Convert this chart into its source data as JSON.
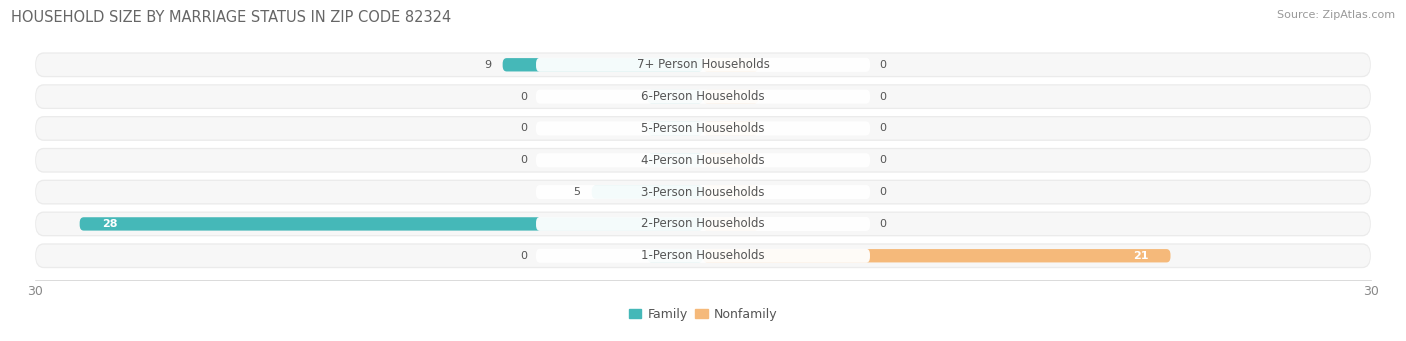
{
  "title": "HOUSEHOLD SIZE BY MARRIAGE STATUS IN ZIP CODE 82324",
  "source": "Source: ZipAtlas.com",
  "categories": [
    "7+ Person Households",
    "6-Person Households",
    "5-Person Households",
    "4-Person Households",
    "3-Person Households",
    "2-Person Households",
    "1-Person Households"
  ],
  "family_values": [
    9,
    0,
    0,
    0,
    5,
    28,
    0
  ],
  "nonfamily_values": [
    0,
    0,
    0,
    0,
    0,
    0,
    21
  ],
  "family_color": "#45b8b8",
  "nonfamily_color": "#f5b97a",
  "stub_color_family": "#85d0d0",
  "stub_color_nonfamily": "#f5c99a",
  "xlim_left": -30,
  "xlim_right": 30,
  "x_ticks": [
    -30,
    30
  ],
  "row_bg_color": "#ebebeb",
  "row_bg_inner_color": "#f7f7f7",
  "title_fontsize": 10.5,
  "source_fontsize": 8,
  "label_fontsize": 8.5,
  "value_fontsize": 8,
  "tick_fontsize": 9,
  "legend_fontsize": 9
}
